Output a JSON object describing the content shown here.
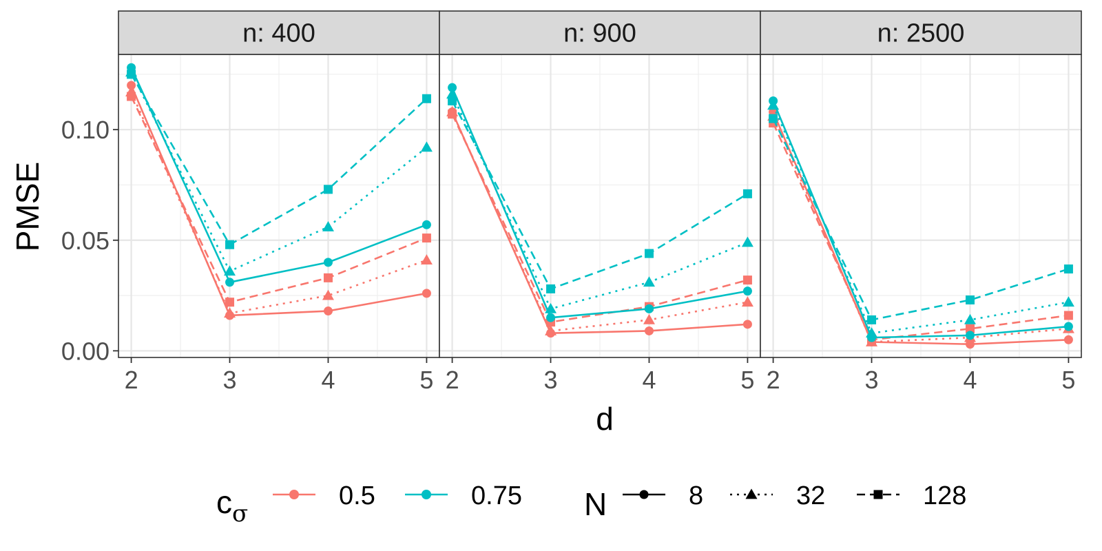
{
  "chart_data": {
    "type": "line",
    "xlabel": "d",
    "ylabel": "PMSE",
    "x": [
      2,
      3,
      4,
      5
    ],
    "xlim": [
      1.87,
      5.13
    ],
    "ylim": [
      -0.003,
      0.134
    ],
    "y_ticks": [
      0.0,
      0.05,
      0.1
    ],
    "y_tick_labels": [
      "0.00",
      "0.05",
      "0.10"
    ],
    "x_tick_labels": [
      "2",
      "3",
      "4",
      "5"
    ],
    "grid": true,
    "legend_position": "bottom",
    "legend": {
      "color_title_base": "c",
      "color_title_sub": "σ",
      "color_items": [
        {
          "label": "0.5",
          "color": "#F8766D"
        },
        {
          "label": "0.75",
          "color": "#00BFC4"
        }
      ],
      "linetype_title": "N",
      "linetype_items": [
        {
          "label": "8",
          "dash": "solid",
          "shape": "circle"
        },
        {
          "label": "32",
          "dash": "dotted",
          "shape": "triangle"
        },
        {
          "label": "128",
          "dash": "dashed",
          "shape": "square"
        }
      ]
    },
    "panels": [
      {
        "title": "n: 400",
        "series": [
          {
            "c_sigma": "0.5",
            "N": "8",
            "values": [
              0.12,
              0.016,
              0.018,
              0.026
            ]
          },
          {
            "c_sigma": "0.5",
            "N": "32",
            "values": [
              0.117,
              0.017,
              0.025,
              0.041
            ]
          },
          {
            "c_sigma": "0.5",
            "N": "128",
            "values": [
              0.115,
              0.022,
              0.033,
              0.051
            ]
          },
          {
            "c_sigma": "0.75",
            "N": "8",
            "values": [
              0.128,
              0.031,
              0.04,
              0.057
            ]
          },
          {
            "c_sigma": "0.75",
            "N": "32",
            "values": [
              0.126,
              0.036,
              0.056,
              0.092
            ]
          },
          {
            "c_sigma": "0.75",
            "N": "128",
            "values": [
              0.125,
              0.048,
              0.073,
              0.114
            ]
          }
        ]
      },
      {
        "title": "n: 900",
        "series": [
          {
            "c_sigma": "0.5",
            "N": "8",
            "values": [
              0.108,
              0.008,
              0.009,
              0.012
            ]
          },
          {
            "c_sigma": "0.5",
            "N": "32",
            "values": [
              0.108,
              0.009,
              0.014,
              0.022
            ]
          },
          {
            "c_sigma": "0.5",
            "N": "128",
            "values": [
              0.107,
              0.013,
              0.02,
              0.032
            ]
          },
          {
            "c_sigma": "0.75",
            "N": "8",
            "values": [
              0.119,
              0.015,
              0.019,
              0.027
            ]
          },
          {
            "c_sigma": "0.75",
            "N": "32",
            "values": [
              0.116,
              0.019,
              0.031,
              0.049
            ]
          },
          {
            "c_sigma": "0.75",
            "N": "128",
            "values": [
              0.113,
              0.028,
              0.044,
              0.071
            ]
          }
        ]
      },
      {
        "title": "n: 2500",
        "series": [
          {
            "c_sigma": "0.5",
            "N": "8",
            "values": [
              0.108,
              0.004,
              0.003,
              0.005
            ]
          },
          {
            "c_sigma": "0.5",
            "N": "32",
            "values": [
              0.106,
              0.004,
              0.006,
              0.01
            ]
          },
          {
            "c_sigma": "0.5",
            "N": "128",
            "values": [
              0.103,
              0.005,
              0.01,
              0.016
            ]
          },
          {
            "c_sigma": "0.75",
            "N": "8",
            "values": [
              0.113,
              0.006,
              0.007,
              0.011
            ]
          },
          {
            "c_sigma": "0.75",
            "N": "32",
            "values": [
              0.111,
              0.008,
              0.014,
              0.022
            ]
          },
          {
            "c_sigma": "0.75",
            "N": "128",
            "values": [
              0.105,
              0.014,
              0.023,
              0.037
            ]
          }
        ]
      }
    ]
  }
}
